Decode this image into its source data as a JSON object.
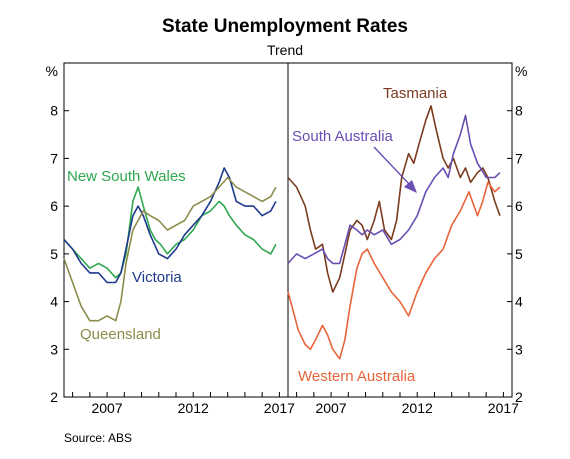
{
  "chart_data": {
    "type": "line",
    "title": "State Unemployment Rates",
    "subtitle": "Trend",
    "source": "Source:   ABS",
    "y_unit": "%",
    "ylim": [
      2,
      9
    ],
    "y_ticks": [
      "2",
      "3",
      "4",
      "5",
      "6",
      "7",
      "8"
    ],
    "xlim": [
      2005.0,
      2018.0
    ],
    "x_ticks": [
      "2007",
      "2012",
      "2017"
    ],
    "panels": [
      {
        "name": "left",
        "series": [
          {
            "name": "New South Wales",
            "color": "#2fa84f",
            "x": [
              2005.0,
              2005.5,
              2006.0,
              2006.5,
              2007.0,
              2007.5,
              2008.0,
              2008.3,
              2008.6,
              2009.0,
              2009.3,
              2009.6,
              2010.0,
              2010.3,
              2010.6,
              2011.0,
              2011.5,
              2012.0,
              2012.5,
              2013.0,
              2013.5,
              2014.0,
              2014.3,
              2014.6,
              2015.0,
              2015.5,
              2016.0,
              2016.5,
              2017.0,
              2017.3
            ],
            "y": [
              5.3,
              5.1,
              4.9,
              4.7,
              4.8,
              4.7,
              4.5,
              4.6,
              5.0,
              6.1,
              6.4,
              6.0,
              5.5,
              5.3,
              5.2,
              5.0,
              5.2,
              5.3,
              5.5,
              5.8,
              5.9,
              6.1,
              6.0,
              5.8,
              5.6,
              5.4,
              5.3,
              5.1,
              5.0,
              5.2
            ]
          },
          {
            "name": "Victoria",
            "color": "#1f3a8a",
            "x": [
              2005.0,
              2005.5,
              2006.0,
              2006.5,
              2007.0,
              2007.5,
              2008.0,
              2008.3,
              2008.6,
              2009.0,
              2009.3,
              2009.6,
              2010.0,
              2010.5,
              2011.0,
              2011.5,
              2012.0,
              2012.5,
              2013.0,
              2013.5,
              2014.0,
              2014.3,
              2014.6,
              2015.0,
              2015.5,
              2016.0,
              2016.5,
              2017.0,
              2017.3
            ],
            "y": [
              5.3,
              5.1,
              4.8,
              4.6,
              4.6,
              4.4,
              4.4,
              4.6,
              5.1,
              5.8,
              6.0,
              5.8,
              5.4,
              5.0,
              4.9,
              5.1,
              5.4,
              5.6,
              5.8,
              6.1,
              6.5,
              6.8,
              6.6,
              6.1,
              6.0,
              6.0,
              5.8,
              5.9,
              6.1
            ]
          },
          {
            "name": "Queensland",
            "color": "#8c8c4b",
            "x": [
              2005.0,
              2005.5,
              2006.0,
              2006.5,
              2007.0,
              2007.5,
              2008.0,
              2008.3,
              2008.6,
              2009.0,
              2009.3,
              2009.6,
              2010.0,
              2010.5,
              2011.0,
              2011.5,
              2012.0,
              2012.5,
              2013.0,
              2013.5,
              2014.0,
              2014.5,
              2015.0,
              2015.5,
              2016.0,
              2016.5,
              2017.0,
              2017.3
            ],
            "y": [
              4.9,
              4.4,
              3.9,
              3.6,
              3.6,
              3.7,
              3.6,
              4.0,
              4.8,
              5.5,
              5.7,
              5.9,
              5.8,
              5.7,
              5.5,
              5.6,
              5.7,
              6.0,
              6.1,
              6.2,
              6.4,
              6.6,
              6.4,
              6.3,
              6.2,
              6.1,
              6.2,
              6.4
            ]
          }
        ],
        "labels": [
          {
            "text": "New South Wales",
            "color": "#2fa84f"
          },
          {
            "text": "Victoria",
            "color": "#1f3a8a"
          },
          {
            "text": "Queensland",
            "color": "#8c8c4b"
          }
        ]
      },
      {
        "name": "right",
        "series": [
          {
            "name": "Tasmania",
            "color": "#7a3b1e",
            "x": [
              2005.0,
              2005.5,
              2006.0,
              2006.3,
              2006.6,
              2007.0,
              2007.3,
              2007.6,
              2008.0,
              2008.3,
              2008.6,
              2009.0,
              2009.3,
              2009.6,
              2010.0,
              2010.3,
              2010.6,
              2011.0,
              2011.3,
              2011.6,
              2012.0,
              2012.3,
              2012.6,
              2013.0,
              2013.3,
              2013.6,
              2014.0,
              2014.3,
              2014.6,
              2015.0,
              2015.3,
              2015.6,
              2016.0,
              2016.3,
              2016.6,
              2017.0,
              2017.3
            ],
            "y": [
              6.6,
              6.4,
              6.0,
              5.5,
              5.1,
              5.2,
              4.6,
              4.2,
              4.5,
              5.0,
              5.5,
              5.7,
              5.6,
              5.3,
              5.7,
              6.1,
              5.5,
              5.3,
              5.7,
              6.6,
              7.1,
              6.9,
              7.3,
              7.8,
              8.1,
              7.6,
              7.0,
              6.8,
              7.0,
              6.6,
              6.8,
              6.5,
              6.7,
              6.8,
              6.6,
              6.1,
              5.8
            ]
          },
          {
            "name": "South Australia",
            "color": "#6a4fb3",
            "x": [
              2005.0,
              2005.5,
              2006.0,
              2006.5,
              2007.0,
              2007.3,
              2007.6,
              2008.0,
              2008.3,
              2008.6,
              2009.0,
              2009.3,
              2009.6,
              2010.0,
              2010.5,
              2011.0,
              2011.5,
              2012.0,
              2012.5,
              2013.0,
              2013.5,
              2014.0,
              2014.3,
              2014.6,
              2015.0,
              2015.3,
              2015.6,
              2016.0,
              2016.5,
              2017.0,
              2017.3
            ],
            "y": [
              4.8,
              5.0,
              4.9,
              5.0,
              5.1,
              4.9,
              4.8,
              4.8,
              5.2,
              5.6,
              5.5,
              5.4,
              5.5,
              5.4,
              5.5,
              5.2,
              5.3,
              5.5,
              5.8,
              6.3,
              6.6,
              6.8,
              6.6,
              7.1,
              7.5,
              7.9,
              7.3,
              6.9,
              6.6,
              6.6,
              6.7
            ]
          },
          {
            "name": "Western Australia",
            "color": "#e8643a",
            "x": [
              2005.0,
              2005.3,
              2005.6,
              2006.0,
              2006.3,
              2006.6,
              2007.0,
              2007.3,
              2007.6,
              2008.0,
              2008.3,
              2008.6,
              2009.0,
              2009.3,
              2009.6,
              2010.0,
              2010.5,
              2011.0,
              2011.5,
              2012.0,
              2012.5,
              2013.0,
              2013.5,
              2014.0,
              2014.5,
              2015.0,
              2015.5,
              2016.0,
              2016.3,
              2016.6,
              2017.0,
              2017.3
            ],
            "y": [
              4.2,
              3.8,
              3.4,
              3.1,
              3.0,
              3.2,
              3.5,
              3.3,
              3.0,
              2.8,
              3.2,
              3.9,
              4.7,
              5.0,
              5.1,
              4.8,
              4.5,
              4.2,
              4.0,
              3.7,
              4.2,
              4.6,
              4.9,
              5.1,
              5.6,
              5.9,
              6.3,
              5.8,
              6.1,
              6.5,
              6.3,
              6.4
            ]
          }
        ],
        "labels": [
          {
            "text": "Tasmania",
            "color": "#7a3b1e"
          },
          {
            "text": "South Australia",
            "color": "#6a4fb3"
          },
          {
            "text": "Western Australia",
            "color": "#e8643a"
          }
        ]
      }
    ]
  }
}
